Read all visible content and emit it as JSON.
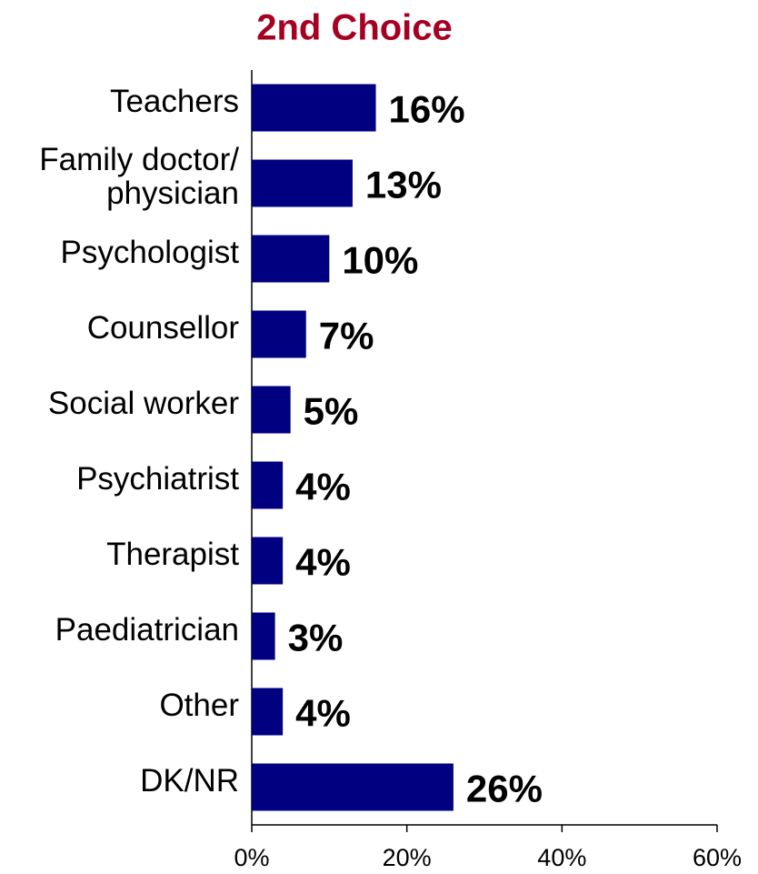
{
  "chart_data": {
    "type": "bar",
    "orientation": "horizontal",
    "title": "2nd Choice",
    "categories": [
      "Teachers",
      "Family doctor/\nphysician",
      "Psychologist",
      "Counsellor",
      "Social worker",
      "Psychiatrist",
      "Therapist",
      "Paediatrician",
      "Other",
      "DK/NR"
    ],
    "values": [
      16,
      13,
      10,
      7,
      5,
      4,
      4,
      3,
      4,
      26
    ],
    "value_labels": [
      "16%",
      "13%",
      "10%",
      "7%",
      "5%",
      "4%",
      "4%",
      "3%",
      "4%",
      "26%"
    ],
    "color": "#000080",
    "xlim": [
      0,
      60
    ],
    "xticks": [
      {
        "value": 0,
        "label": "0%"
      },
      {
        "value": 20,
        "label": "20%"
      },
      {
        "value": 40,
        "label": "40%"
      },
      {
        "value": 60,
        "label": "60%"
      }
    ]
  }
}
